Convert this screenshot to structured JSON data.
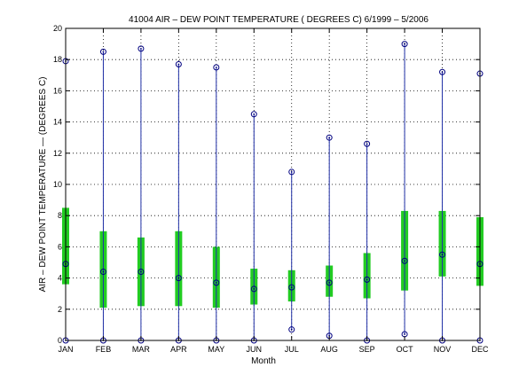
{
  "chart_data": {
    "type": "box",
    "title": "41004  AIR – DEW POINT TEMPERATURE ( DEGREES C) 6/1999 – 5/2006",
    "xlabel": "Month",
    "ylabel": "AIR – DEW POINT TEMPERATURE  —  (DEGREES C)",
    "ylim": [
      0,
      20
    ],
    "yticks": [
      0,
      2,
      4,
      6,
      8,
      10,
      12,
      14,
      16,
      18,
      20
    ],
    "grid": true,
    "categories": [
      "JAN",
      "FEB",
      "MAR",
      "APR",
      "MAY",
      "JUN",
      "JUL",
      "AUG",
      "SEP",
      "OCT",
      "NOV",
      "DEC"
    ],
    "min": [
      0.0,
      0.0,
      0.0,
      0.0,
      0.0,
      0.0,
      0.7,
      0.3,
      0.0,
      0.4,
      0.0,
      0.0
    ],
    "q1": [
      3.6,
      2.1,
      2.2,
      2.2,
      2.1,
      2.3,
      2.5,
      2.8,
      2.7,
      3.2,
      4.1,
      3.5
    ],
    "median": [
      4.9,
      4.4,
      4.4,
      4.0,
      3.7,
      3.3,
      3.4,
      3.7,
      3.9,
      5.1,
      5.5,
      4.9
    ],
    "q3": [
      8.5,
      7.0,
      6.6,
      7.0,
      6.0,
      4.6,
      4.5,
      4.8,
      5.6,
      8.3,
      8.3,
      7.9
    ],
    "max": [
      17.9,
      18.5,
      18.7,
      17.7,
      17.5,
      14.5,
      10.8,
      13.0,
      12.6,
      19.0,
      17.2,
      17.1
    ],
    "colors": {
      "whisker": "#1f2fa6",
      "box": "#22cc22",
      "marker": "#000080"
    }
  }
}
